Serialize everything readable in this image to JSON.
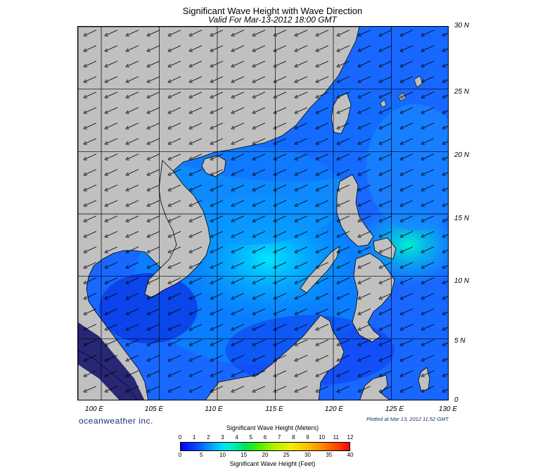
{
  "title": "Significant Wave Height with Wave Direction",
  "subtitle": "Valid For Mar-13-2012 18:00 GMT",
  "latitudes": [
    "30 N",
    "25 N",
    "20 N",
    "15 N",
    "10 N",
    "5 N",
    "0"
  ],
  "longitudes": [
    "100 E",
    "105 E",
    "110 E",
    "115 E",
    "120 E",
    "125 E",
    "130 E"
  ],
  "brand": "oceanweather inc.",
  "plotted": "Plotted at Mar 13, 2012 11:52 GMT",
  "legend": {
    "title_meters": "Significant Wave Height (Meters)",
    "title_feet": "Significant Wave Height (Feet)",
    "meters_ticks": [
      "0",
      "1",
      "2",
      "3",
      "4",
      "5",
      "6",
      "7",
      "8",
      "9",
      "10",
      "11",
      "12"
    ],
    "feet_ticks": [
      "0",
      "5",
      "10",
      "15",
      "20",
      "25",
      "30",
      "35",
      "40"
    ]
  },
  "colors": {
    "land": "#c0c0c0",
    "sea_low": "#1030ff",
    "sea_mid": "#0090ff",
    "sea_high": "#00d8ff",
    "coast": "#000000"
  },
  "map": {
    "lon_range": [
      98,
      130
    ],
    "lat_range": [
      0,
      30
    ],
    "wave_direction": "from northeast (arrows pointing southwest)"
  }
}
